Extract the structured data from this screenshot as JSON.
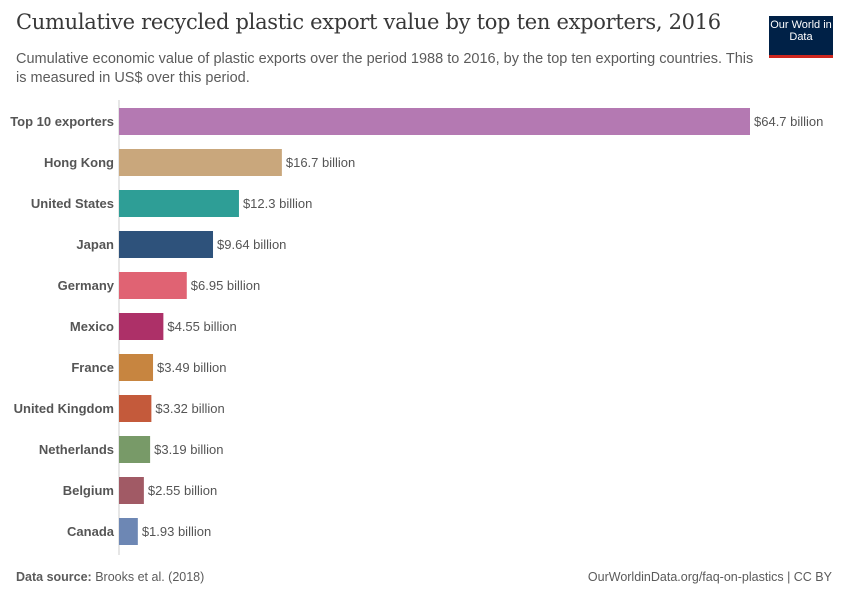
{
  "header": {
    "title": "Cumulative recycled plastic export value by top ten exporters, 2016",
    "subtitle": "Cumulative economic value of plastic exports over the period 1988 to 2016, by the top ten exporting countries. This is measured in US$ over this period.",
    "logo_text": "Our World in Data"
  },
  "footer": {
    "source_label": "Data source:",
    "source": "Brooks et al. (2018)",
    "url": "OurWorldinData.org/faq-on-plastics | CC BY"
  },
  "chart_data": {
    "type": "bar",
    "orientation": "horizontal",
    "unit": "US$ billion",
    "categories": [
      "Top 10 exporters",
      "Hong Kong",
      "United States",
      "Japan",
      "Germany",
      "Mexico",
      "France",
      "United Kingdom",
      "Netherlands",
      "Belgium",
      "Canada"
    ],
    "values": [
      64.7,
      16.7,
      12.3,
      9.64,
      6.95,
      4.55,
      3.49,
      3.32,
      3.19,
      2.55,
      1.93
    ],
    "labels": [
      "$64.7 billion",
      "$16.7 billion",
      "$12.3 billion",
      "$9.64 billion",
      "$6.95 billion",
      "$4.55 billion",
      "$3.49 billion",
      "$3.32 billion",
      "$3.19 billion",
      "$2.55 billion",
      "$1.93 billion"
    ],
    "colors": [
      "#b479b2",
      "#c9a77c",
      "#2e9e96",
      "#2e527b",
      "#e06373",
      "#ad3068",
      "#c78540",
      "#c45a3b",
      "#789a68",
      "#a15a65",
      "#6d87b4"
    ],
    "xlim": [
      0,
      64.7
    ],
    "grid": false
  }
}
